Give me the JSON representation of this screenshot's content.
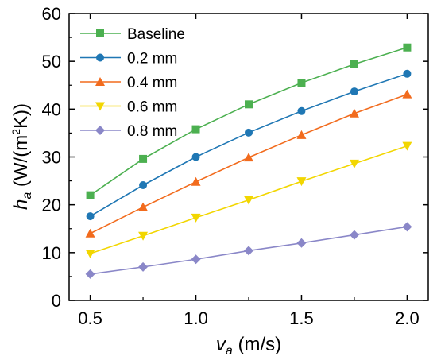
{
  "chart_data": {
    "type": "line",
    "xlabel": {
      "main": "v",
      "sub": "a",
      "unit": " (m/s)"
    },
    "ylabel": {
      "main": "h",
      "sub": "a",
      "unit_pre": " (W/(m",
      "unit_sup": "2",
      "unit_post": "K))"
    },
    "x": [
      0.5,
      0.75,
      1.0,
      1.25,
      1.5,
      1.75,
      2.0
    ],
    "xlim": [
      0.4,
      2.1
    ],
    "ylim": [
      0,
      60
    ],
    "xticks": [
      "0.5",
      "1.0",
      "1.5",
      "2.0"
    ],
    "yticks": [
      "0",
      "10",
      "20",
      "30",
      "40",
      "50",
      "60"
    ],
    "grid": false,
    "legend": "top-left",
    "series": [
      {
        "name": "Baseline",
        "color": "#4cb050",
        "marker": "square",
        "values": [
          22.0,
          29.6,
          35.8,
          41.0,
          45.5,
          49.4,
          52.9
        ]
      },
      {
        "name": "0.2 mm",
        "color": "#1f77b4",
        "marker": "circle",
        "values": [
          17.6,
          24.1,
          30.0,
          35.1,
          39.6,
          43.7,
          47.4
        ]
      },
      {
        "name": "0.4 mm",
        "color": "#f26b1d",
        "marker": "triangle-up",
        "values": [
          14.0,
          19.5,
          24.8,
          29.9,
          34.6,
          39.1,
          43.1
        ]
      },
      {
        "name": "0.6 mm",
        "color": "#f2d600",
        "marker": "triangle-down",
        "values": [
          9.8,
          13.5,
          17.3,
          21.0,
          24.9,
          28.6,
          32.3
        ]
      },
      {
        "name": "0.8 mm",
        "color": "#8a87c8",
        "marker": "diamond",
        "values": [
          5.5,
          7.0,
          8.6,
          10.4,
          12.0,
          13.7,
          15.4
        ]
      }
    ]
  }
}
